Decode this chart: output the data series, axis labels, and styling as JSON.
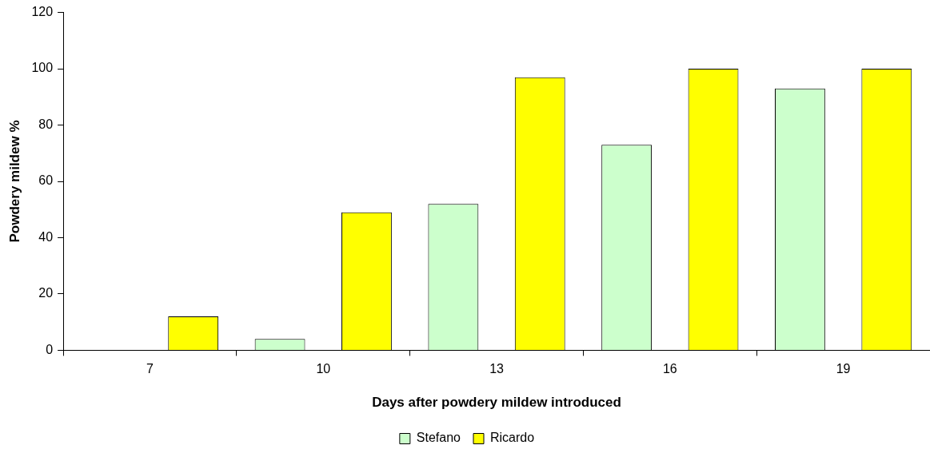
{
  "chart_data": {
    "type": "bar",
    "xlabel": "Days after powdery mildew introduced",
    "ylabel": "Powdery mildew %",
    "categories": [
      "7",
      "10",
      "13",
      "16",
      "19"
    ],
    "series": [
      {
        "name": "Stefano",
        "color": "#ccffcc",
        "values": [
          0,
          4,
          52,
          73,
          93
        ]
      },
      {
        "name": "Ricardo",
        "color": "#ffff00",
        "values": [
          12,
          49,
          97,
          100,
          100
        ]
      }
    ],
    "ylim": [
      0,
      120
    ],
    "yticks": [
      0,
      20,
      40,
      60,
      80,
      100,
      120
    ],
    "grid": false,
    "legend": "bottom"
  }
}
